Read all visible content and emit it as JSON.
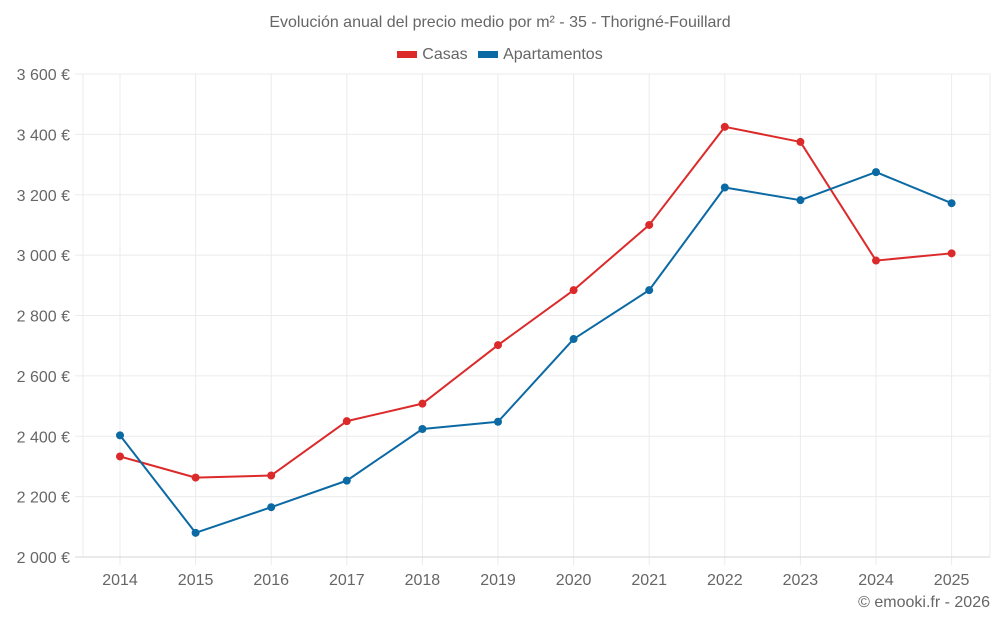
{
  "chart_data": {
    "type": "line",
    "title": "Evolución anual del precio medio por m² - 35 - Thorigné-Fouillard",
    "xlabel": "",
    "ylabel": "",
    "x": [
      "2014",
      "2015",
      "2016",
      "2017",
      "2018",
      "2019",
      "2020",
      "2021",
      "2022",
      "2023",
      "2024",
      "2025"
    ],
    "ylim": [
      2000,
      3600
    ],
    "yticks": [
      2000,
      2200,
      2400,
      2600,
      2800,
      3000,
      3200,
      3400,
      3600
    ],
    "ytick_labels": [
      "2 000 €",
      "2 200 €",
      "2 400 €",
      "2 600 €",
      "2 800 €",
      "3 000 €",
      "3 200 €",
      "3 400 €",
      "3 600 €"
    ],
    "grid": true,
    "legend_position": "top-center",
    "series": [
      {
        "name": "Casas",
        "color": "#dc2a2a",
        "values": [
          2333,
          2263,
          2270,
          2450,
          2508,
          2702,
          2884,
          3100,
          3425,
          3375,
          2982,
          3006
        ]
      },
      {
        "name": "Apartamentos",
        "color": "#0b69a3",
        "values": [
          2403,
          2080,
          2165,
          2253,
          2424,
          2448,
          2722,
          2884,
          3224,
          3182,
          3275,
          3172
        ]
      }
    ]
  },
  "footer": {
    "copyright": "© emooki.fr - 2026"
  }
}
